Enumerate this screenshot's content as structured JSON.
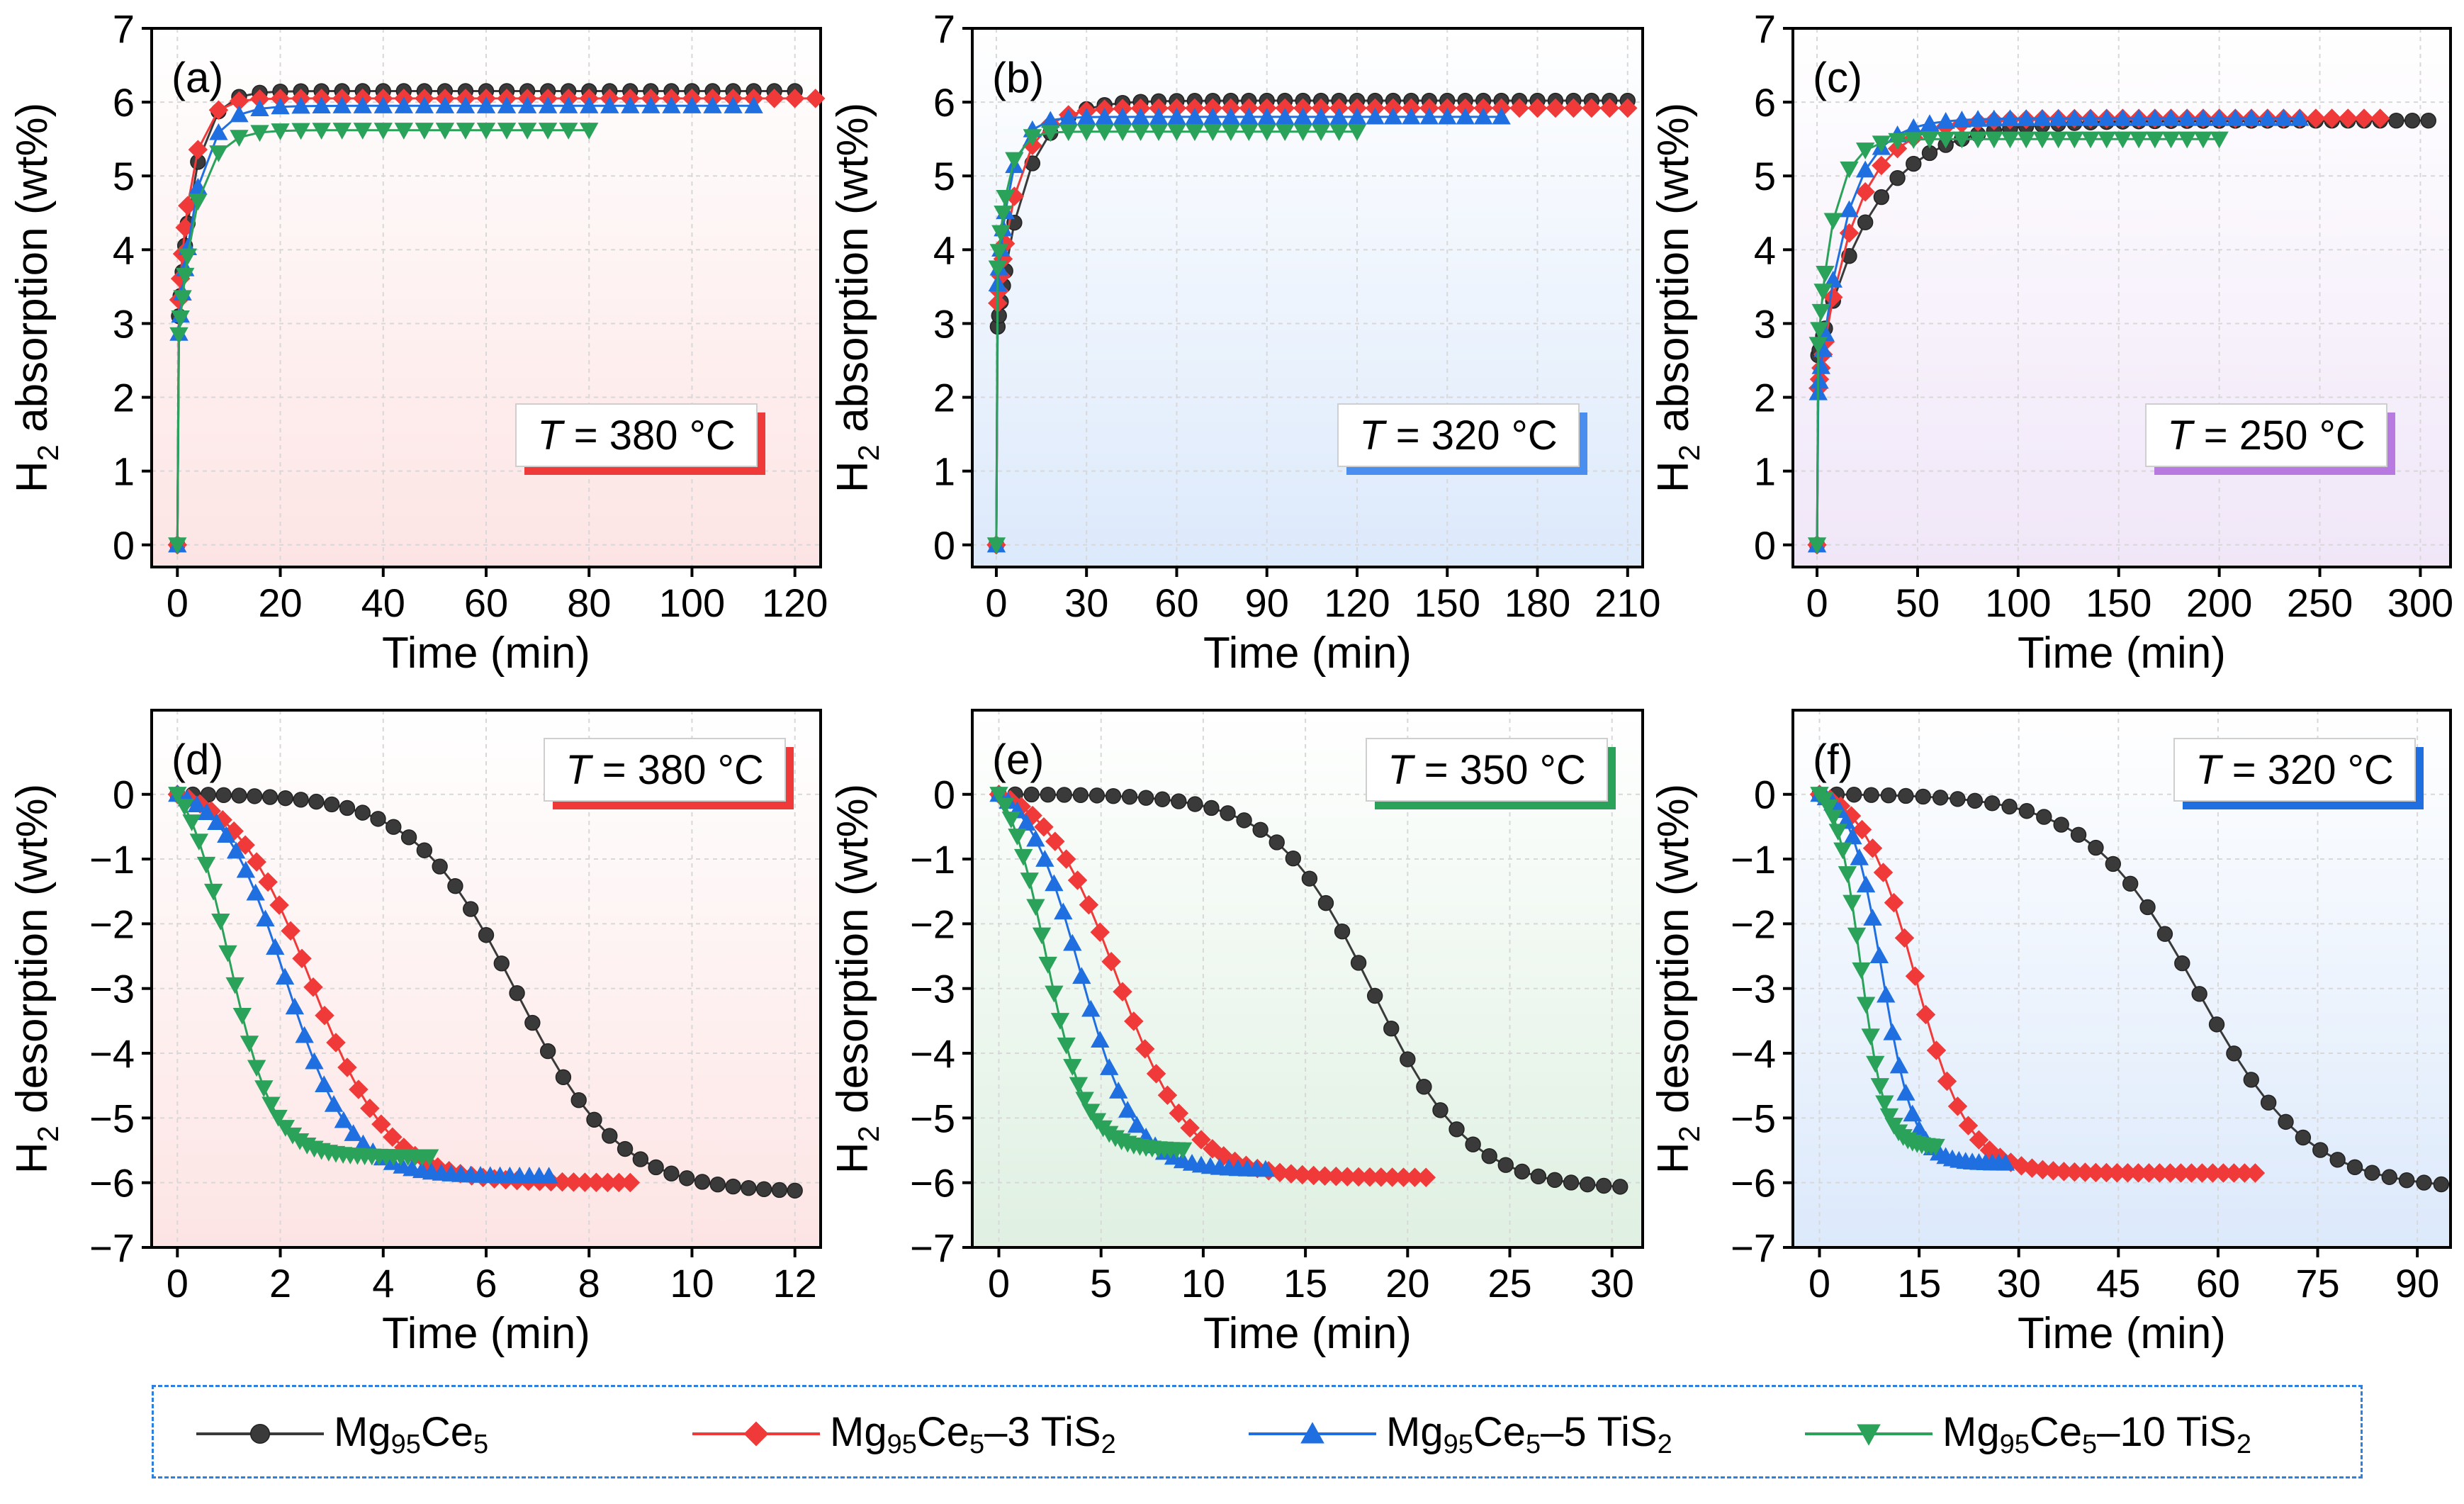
{
  "colors": {
    "Mg95Ce5": "#3a3a3a",
    "Mg95Ce5-3TiS2": "#f03a3a",
    "Mg95Ce5-5TiS2": "#1f6fe0",
    "Mg95Ce5-10TiS2": "#2aa25a"
  },
  "legend": [
    {
      "key": "Mg95Ce5",
      "base": "Mg",
      "s1": "95",
      "mid": "Ce",
      "s2": "5",
      "tail": "",
      "s3": "",
      "marker": "circle"
    },
    {
      "key": "Mg95Ce5-3TiS2",
      "base": "Mg",
      "s1": "95",
      "mid": "Ce",
      "s2": "5",
      "tail": "–3 TiS",
      "s3": "2",
      "marker": "diamond"
    },
    {
      "key": "Mg95Ce5-5TiS2",
      "base": "Mg",
      "s1": "95",
      "mid": "Ce",
      "s2": "5",
      "tail": "–5 TiS",
      "s3": "2",
      "marker": "triangle-up"
    },
    {
      "key": "Mg95Ce5-10TiS2",
      "base": "Mg",
      "s1": "95",
      "mid": "Ce",
      "s2": "5",
      "tail": "–10 TiS",
      "s3": "2",
      "marker": "triangle-down"
    }
  ],
  "chart_data": [
    {
      "panel": "(a)",
      "type": "line",
      "mode": "absorption",
      "xlabel": "Time (min)",
      "ylabel": "H2 absorption (wt%)",
      "xlim": [
        -5,
        125
      ],
      "xticks": [
        0,
        20,
        40,
        60,
        80,
        100,
        120
      ],
      "ylim": [
        -0.3,
        7
      ],
      "yticks": [
        0,
        1,
        2,
        3,
        4,
        5,
        6,
        7
      ],
      "temp_label": "T = 380 °C",
      "temp_prefix": "T",
      "temp_value": " = 380 °C",
      "temp_accent": "#f03a3a",
      "bg": "#fde4e4",
      "legend_position": "bottom-right",
      "series": [
        {
          "name": "Mg95Ce5",
          "tmax": 122,
          "final": 6.15,
          "tau": 3.2,
          "init": 2.8,
          "step": 4
        },
        {
          "name": "Mg95Ce5-3TiS2",
          "tmax": 125,
          "final": 6.05,
          "tau": 2.7,
          "init": 3.0,
          "step": 4
        },
        {
          "name": "Mg95Ce5-5TiS2",
          "tmax": 115,
          "final": 5.95,
          "tau": 3.6,
          "init": 2.6,
          "step": 4
        },
        {
          "name": "Mg95Ce5-10TiS2",
          "tmax": 80,
          "final": 5.62,
          "tau": 3.5,
          "init": 2.6,
          "step": 4
        }
      ]
    },
    {
      "panel": "(b)",
      "type": "line",
      "mode": "absorption",
      "xlabel": "Time (min)",
      "ylabel": "H2 absorption (wt%)",
      "xlim": [
        -8,
        215
      ],
      "xticks": [
        0,
        30,
        60,
        90,
        120,
        150,
        180,
        210
      ],
      "ylim": [
        -0.3,
        7
      ],
      "yticks": [
        0,
        1,
        2,
        3,
        4,
        5,
        6,
        7
      ],
      "temp_label": "T = 320 °C",
      "temp_prefix": "T",
      "temp_value": " = 320 °C",
      "temp_accent": "#4a8ef0",
      "bg": "#dce9fb",
      "legend_position": "bottom-right",
      "series": [
        {
          "name": "Mg95Ce5",
          "tmax": 215,
          "final": 6.02,
          "tau": 9.0,
          "init": 2.8,
          "step": 6
        },
        {
          "name": "Mg95Ce5-3TiS2",
          "tmax": 215,
          "final": 5.92,
          "tau": 7.0,
          "init": 3.1,
          "step": 6
        },
        {
          "name": "Mg95Ce5-5TiS2",
          "tmax": 168,
          "final": 5.8,
          "tau": 4.5,
          "init": 3.3,
          "step": 6
        },
        {
          "name": "Mg95Ce5-10TiS2",
          "tmax": 120,
          "final": 5.6,
          "tau": 3.5,
          "init": 3.5,
          "step": 6
        }
      ]
    },
    {
      "panel": "(c)",
      "type": "line",
      "mode": "absorption",
      "xlabel": "Time (min)",
      "ylabel": "H2 absorption (wt%)",
      "xlim": [
        -12,
        315
      ],
      "xticks": [
        0,
        50,
        100,
        150,
        200,
        250,
        300
      ],
      "ylim": [
        -0.3,
        7
      ],
      "yticks": [
        0,
        1,
        2,
        3,
        4,
        5,
        6,
        7
      ],
      "temp_label": "T = 250 °C",
      "temp_prefix": "T",
      "temp_value": " = 250 °C",
      "temp_accent": "#b87ae0",
      "bg": "#f0e6f8",
      "legend_position": "bottom-right",
      "series": [
        {
          "name": "Mg95Ce5",
          "tmax": 310,
          "final": 5.75,
          "tau": 28.0,
          "init": 2.5,
          "step": 8
        },
        {
          "name": "Mg95Ce5-3TiS2",
          "tmax": 285,
          "final": 5.78,
          "tau": 18.0,
          "init": 2.0,
          "step": 8
        },
        {
          "name": "Mg95Ce5-5TiS2",
          "tmax": 240,
          "final": 5.78,
          "tau": 14.0,
          "init": 1.9,
          "step": 8
        },
        {
          "name": "Mg95Ce5-10TiS2",
          "tmax": 200,
          "final": 5.5,
          "tau": 8.0,
          "init": 2.5,
          "step": 8
        }
      ]
    },
    {
      "panel": "(d)",
      "type": "line",
      "mode": "desorption",
      "xlabel": "Time (min)",
      "ylabel": "H2 desorption (wt%)",
      "xlim": [
        -0.5,
        12.5
      ],
      "xticks": [
        0,
        2,
        4,
        6,
        8,
        10,
        12
      ],
      "ylim": [
        -7,
        1.3
      ],
      "yticks": [
        -7,
        -6,
        -5,
        -4,
        -3,
        -2,
        -1,
        0
      ],
      "temp_label": "T = 380 °C",
      "temp_prefix": "T",
      "temp_value": " = 380 °C",
      "temp_accent": "#f03a3a",
      "bg": "#fde4e4",
      "legend_position": "top-right",
      "series": [
        {
          "name": "Mg95Ce5",
          "tmax": 12.0,
          "final": 6.15,
          "t50": 6.6,
          "k": 1.0,
          "step": 0.3
        },
        {
          "name": "Mg95Ce5-3TiS2",
          "tmax": 9.0,
          "final": 6.0,
          "t50": 2.6,
          "k": 1.3,
          "step": 0.22
        },
        {
          "name": "Mg95Ce5-5TiS2",
          "tmax": 7.4,
          "final": 5.9,
          "t50": 2.1,
          "k": 1.6,
          "step": 0.19
        },
        {
          "name": "Mg95Ce5-10TiS2",
          "tmax": 5.0,
          "final": 5.6,
          "t50": 1.0,
          "k": 2.3,
          "step": 0.14
        }
      ]
    },
    {
      "panel": "(e)",
      "type": "line",
      "mode": "desorption",
      "xlabel": "Time (min)",
      "ylabel": "H2 desorption (wt%)",
      "xlim": [
        -1.3,
        31.5
      ],
      "xticks": [
        0,
        5,
        10,
        15,
        20,
        25,
        30
      ],
      "ylim": [
        -7,
        1.3
      ],
      "yticks": [
        -7,
        -6,
        -5,
        -4,
        -3,
        -2,
        -1,
        0
      ],
      "temp_label": "T = 350 °C",
      "temp_prefix": "T",
      "temp_value": " = 350 °C",
      "temp_accent": "#2aa25a",
      "bg": "#dff0e2",
      "legend_position": "top-right",
      "series": [
        {
          "name": "Mg95Ce5",
          "tmax": 31.0,
          "final": 6.1,
          "t50": 18.3,
          "k": 0.42,
          "step": 0.8
        },
        {
          "name": "Mg95Ce5-3TiS2",
          "tmax": 21.0,
          "final": 5.92,
          "t50": 5.8,
          "k": 0.55,
          "step": 0.55
        },
        {
          "name": "Mg95Ce5-5TiS2",
          "tmax": 13.2,
          "final": 5.8,
          "t50": 4.0,
          "k": 0.75,
          "step": 0.45
        },
        {
          "name": "Mg95Ce5-10TiS2",
          "tmax": 9.0,
          "final": 5.5,
          "t50": 2.3,
          "k": 1.0,
          "step": 0.3
        }
      ]
    },
    {
      "panel": "(f)",
      "type": "line",
      "mode": "desorption",
      "xlabel": "Time (min)",
      "ylabel": "H2 desorption (wt%)",
      "xlim": [
        -4,
        95
      ],
      "xticks": [
        0,
        15,
        30,
        45,
        60,
        75,
        90
      ],
      "ylim": [
        -7,
        1.3
      ],
      "yticks": [
        -7,
        -6,
        -5,
        -4,
        -3,
        -2,
        -1,
        0
      ],
      "temp_label": "T = 320 °C",
      "temp_prefix": "T",
      "temp_value": " = 320 °C",
      "temp_accent": "#1f6fe0",
      "bg": "#dce9fb",
      "legend_position": "top-right",
      "series": [
        {
          "name": "Mg95Ce5",
          "tmax": 94.0,
          "final": 6.1,
          "t50": 57.0,
          "k": 0.12,
          "step": 2.6
        },
        {
          "name": "Mg95Ce5-3TiS2",
          "tmax": 67.0,
          "final": 5.85,
          "t50": 14.5,
          "k": 0.25,
          "step": 1.6
        },
        {
          "name": "Mg95Ce5-5TiS2",
          "tmax": 28.0,
          "final": 5.7,
          "t50": 9.5,
          "k": 0.42,
          "step": 1.0
        },
        {
          "name": "Mg95Ce5-10TiS2",
          "tmax": 18.0,
          "final": 5.45,
          "t50": 6.2,
          "k": 0.55,
          "step": 0.7
        }
      ]
    }
  ]
}
